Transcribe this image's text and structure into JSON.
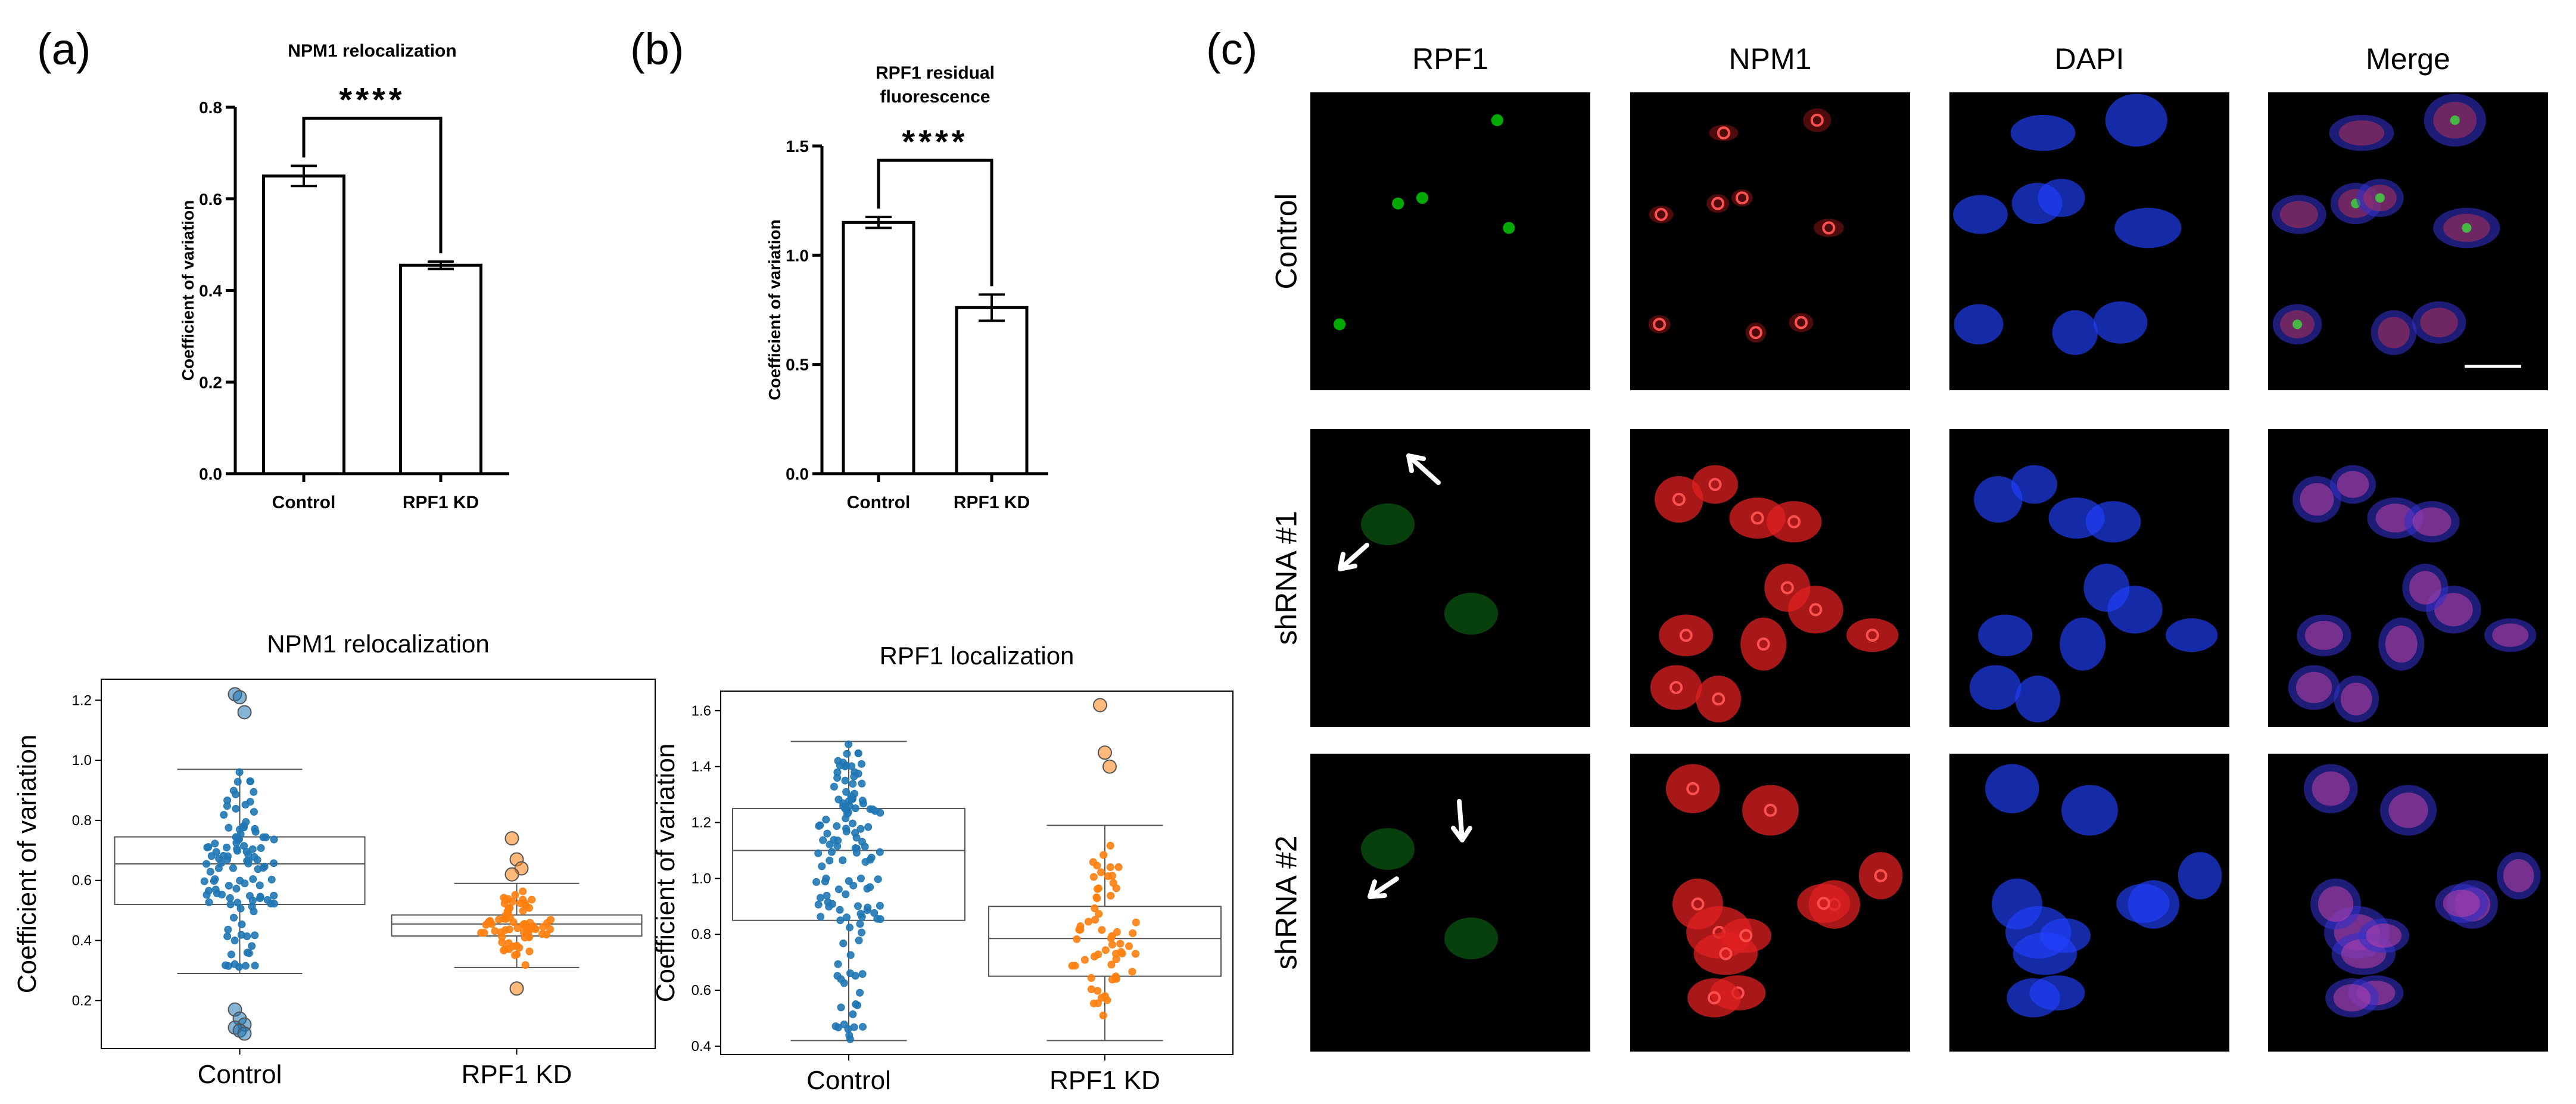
{
  "panel_labels": {
    "a": "(a)",
    "b": "(b)",
    "c": "(c)"
  },
  "colors": {
    "control": "#1f77b4",
    "rpf1_kd": "#ff7f0e",
    "rpf1_channel": "#00c800",
    "npm1_channel": "#e02020",
    "dapi_channel": "#2040ff",
    "background": "#000000"
  },
  "chart_data": [
    {
      "id": "a_top",
      "type": "bar",
      "title": "NPM1 relocalization",
      "ylabel": "Coefficient of variation",
      "categories": [
        "Control",
        "RPF1 KD"
      ],
      "values": [
        0.65,
        0.455
      ],
      "errors": [
        0.022,
        0.008
      ],
      "ylim": [
        0,
        0.8
      ],
      "yticks": [
        "0.0",
        "0.2",
        "0.4",
        "0.6",
        "0.8"
      ],
      "significance": "****"
    },
    {
      "id": "b_top",
      "type": "bar",
      "title": "RPF1 residual fluorescence",
      "title_lines": [
        "RPF1 residual",
        "fluorescence"
      ],
      "ylabel": "Coefficient of variation",
      "categories": [
        "Control",
        "RPF1 KD"
      ],
      "values": [
        1.15,
        0.76
      ],
      "errors": [
        0.025,
        0.06
      ],
      "ylim": [
        0,
        1.5
      ],
      "yticks": [
        "0.0",
        "0.5",
        "1.0",
        "1.5"
      ],
      "significance": "****"
    },
    {
      "id": "a_bottom",
      "type": "box",
      "title": "NPM1 relocalization",
      "ylabel": "Coefficient of variation",
      "categories": [
        "Control",
        "RPF1 KD"
      ],
      "ylim": [
        0.04,
        1.27
      ],
      "yticks": [
        "0.2",
        "0.4",
        "0.6",
        "0.8",
        "1.0",
        "1.2"
      ],
      "boxes": [
        {
          "name": "Control",
          "whisker_low": 0.29,
          "q1": 0.52,
          "median": 0.655,
          "q3": 0.745,
          "whisker_high": 0.97,
          "outliers": [
            1.22,
            1.21,
            1.16,
            0.17,
            0.14,
            0.12,
            0.11,
            0.1,
            0.09
          ]
        },
        {
          "name": "RPF1 KD",
          "whisker_low": 0.31,
          "q1": 0.415,
          "median": 0.455,
          "q3": 0.485,
          "whisker_high": 0.59,
          "outliers": [
            0.74,
            0.67,
            0.64,
            0.62,
            0.24
          ]
        }
      ]
    },
    {
      "id": "b_bottom",
      "type": "box",
      "title": "RPF1 localization",
      "ylabel": "Coefficient of variation",
      "categories": [
        "Control",
        "RPF1 KD"
      ],
      "ylim": [
        0.37,
        1.67
      ],
      "yticks": [
        "0.4",
        "0.6",
        "0.8",
        "1.0",
        "1.2",
        "1.4",
        "1.6"
      ],
      "boxes": [
        {
          "name": "Control",
          "whisker_low": 0.42,
          "q1": 0.85,
          "median": 1.1,
          "q3": 1.25,
          "whisker_high": 1.49,
          "outliers": []
        },
        {
          "name": "RPF1 KD",
          "whisker_low": 0.42,
          "q1": 0.65,
          "median": 0.785,
          "q3": 0.9,
          "whisker_high": 1.19,
          "outliers": [
            1.62,
            1.45,
            1.4
          ]
        }
      ]
    }
  ],
  "micrographs": {
    "columns": [
      "RPF1",
      "NPM1",
      "DAPI",
      "Merge"
    ],
    "rows": [
      "Control",
      "shRNA #1",
      "shRNA #2"
    ]
  }
}
